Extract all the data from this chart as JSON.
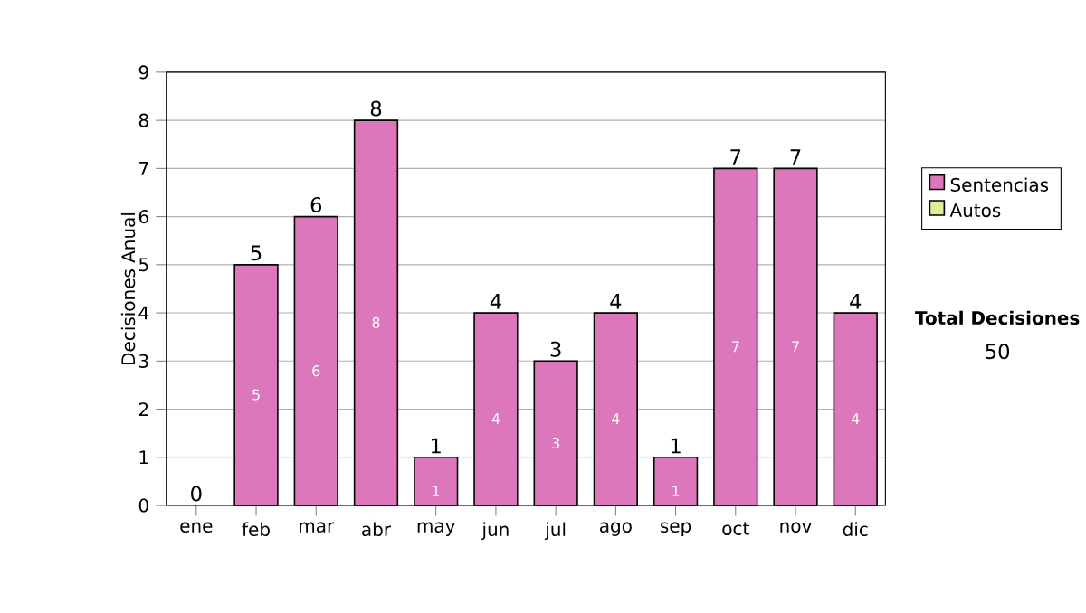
{
  "chart_data": {
    "type": "bar",
    "stacked": true,
    "ylabel": "Decisiones Anual",
    "categories": [
      "ene",
      "feb",
      "mar",
      "abr",
      "may",
      "jun",
      "jul",
      "ago",
      "sep",
      "oct",
      "nov",
      "dic"
    ],
    "series": [
      {
        "name": "Sentencias",
        "color": "#dd77bb",
        "values": [
          0,
          5,
          6,
          8,
          1,
          4,
          3,
          4,
          1,
          7,
          7,
          4
        ],
        "value_labels": [
          null,
          "5",
          "6",
          "8",
          "1",
          "4",
          "3",
          "4",
          "1",
          "7",
          "7",
          "4"
        ]
      },
      {
        "name": "Autos",
        "color": "#ddee99",
        "values": [
          null,
          null,
          null,
          null,
          null,
          null,
          null,
          null,
          null,
          null,
          null,
          null
        ]
      }
    ],
    "totals": [
      "0",
      "5",
      "6",
      "8",
      "1",
      "4",
      "3",
      "4",
      "1",
      "7",
      "7",
      "4"
    ],
    "ylim": [
      0,
      9
    ],
    "yticks": [
      0,
      1,
      2,
      3,
      4,
      5,
      6,
      7,
      8,
      9
    ],
    "grid": "y",
    "legend": "right",
    "annotations": [
      "Total Decisiones",
      "50"
    ]
  }
}
